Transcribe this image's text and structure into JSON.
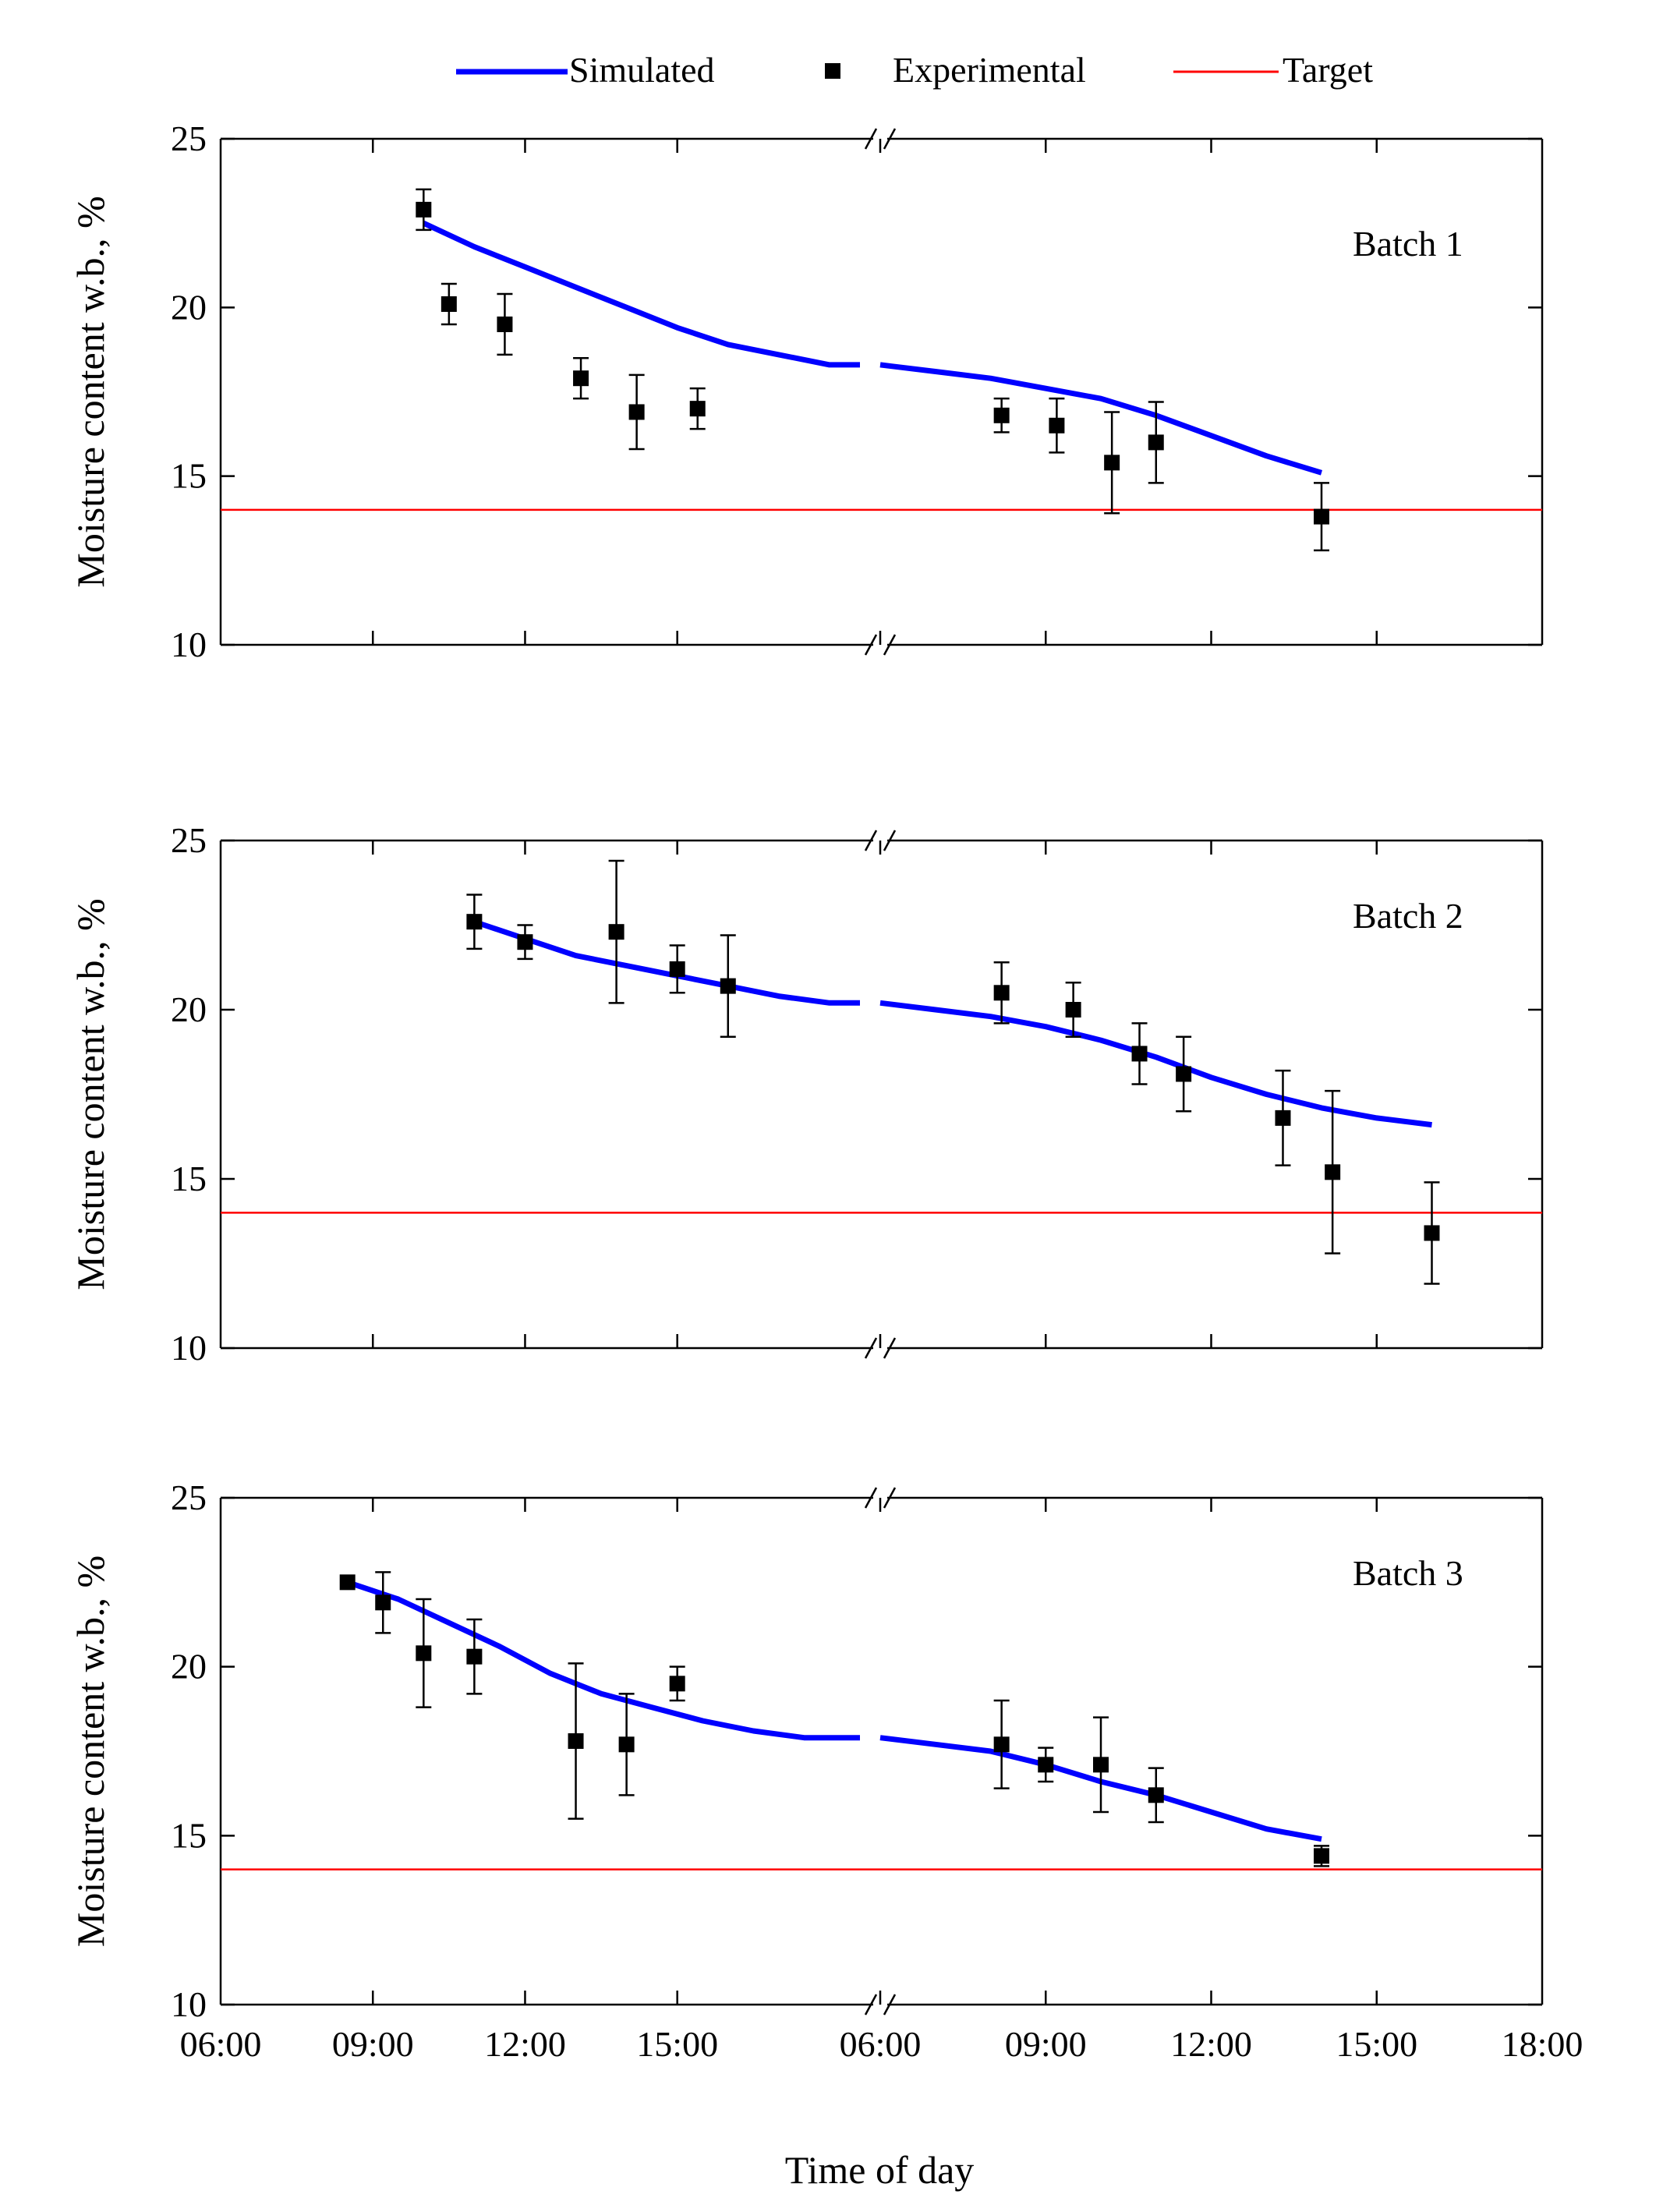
{
  "legend": {
    "simulated": "Simulated",
    "experimental": "Experimental",
    "target": "Target"
  },
  "colors": {
    "simulated": "#0000ff",
    "experimental": "#000000",
    "target": "#ff0000",
    "axis": "#000000"
  },
  "chart_data": {
    "type": "line",
    "xlabel": "Time of day",
    "ylabel": "Moisture content w.b., %",
    "ylim": [
      10,
      25
    ],
    "yticks": [
      10,
      15,
      20,
      25
    ],
    "x_axis_note": "Broken axis: day 1 spans 06:00-19:00 (hours 6-19), day 2 spans 06:00-18:00 (plotted as hours 30-42)",
    "xticks": [
      {
        "hour": 6,
        "label": "06:00"
      },
      {
        "hour": 9,
        "label": "09:00"
      },
      {
        "hour": 12,
        "label": "12:00"
      },
      {
        "hour": 15,
        "label": "15:00"
      },
      {
        "hour": 30,
        "label": "06:00"
      },
      {
        "hour": 33,
        "label": "09:00"
      },
      {
        "hour": 36,
        "label": "12:00"
      },
      {
        "hour": 39,
        "label": "15:00"
      },
      {
        "hour": 42,
        "label": "18:00"
      }
    ],
    "target": 14,
    "panels": [
      {
        "label": "Batch 1",
        "simulated": [
          [
            [
              10.0,
              22.5
            ],
            [
              11.0,
              21.8
            ],
            [
              12.0,
              21.2
            ],
            [
              13.0,
              20.6
            ],
            [
              14.0,
              20.0
            ],
            [
              15.0,
              19.4
            ],
            [
              16.0,
              18.9
            ],
            [
              17.0,
              18.6
            ],
            [
              18.0,
              18.3
            ],
            [
              18.6,
              18.3
            ]
          ],
          [
            [
              30.0,
              18.3
            ],
            [
              31.0,
              18.1
            ],
            [
              32.0,
              17.9
            ],
            [
              33.0,
              17.6
            ],
            [
              34.0,
              17.3
            ],
            [
              35.0,
              16.8
            ],
            [
              36.0,
              16.2
            ],
            [
              37.0,
              15.6
            ],
            [
              38.0,
              15.1
            ]
          ]
        ],
        "experimental": [
          {
            "x": 10.0,
            "y": 22.9,
            "err": 0.6
          },
          {
            "x": 10.5,
            "y": 20.1,
            "err": 0.6
          },
          {
            "x": 11.6,
            "y": 19.5,
            "err": 0.9
          },
          {
            "x": 13.1,
            "y": 17.9,
            "err": 0.6
          },
          {
            "x": 14.2,
            "y": 16.9,
            "err": 1.1
          },
          {
            "x": 15.4,
            "y": 17.0,
            "err": 0.6
          },
          {
            "x": 32.2,
            "y": 16.8,
            "err": 0.5
          },
          {
            "x": 33.2,
            "y": 16.5,
            "err": 0.8
          },
          {
            "x": 34.2,
            "y": 15.4,
            "err": 1.5
          },
          {
            "x": 35.0,
            "y": 16.0,
            "err": 1.2
          },
          {
            "x": 38.0,
            "y": 13.8,
            "err": 1.0
          }
        ]
      },
      {
        "label": "Batch 2",
        "simulated": [
          [
            [
              11.0,
              22.6
            ],
            [
              12.0,
              22.1
            ],
            [
              13.0,
              21.6
            ],
            [
              14.0,
              21.3
            ],
            [
              15.0,
              21.0
            ],
            [
              16.0,
              20.7
            ],
            [
              17.0,
              20.4
            ],
            [
              18.0,
              20.2
            ],
            [
              18.6,
              20.2
            ]
          ],
          [
            [
              30.0,
              20.2
            ],
            [
              31.0,
              20.0
            ],
            [
              32.0,
              19.8
            ],
            [
              33.0,
              19.5
            ],
            [
              34.0,
              19.1
            ],
            [
              35.0,
              18.6
            ],
            [
              36.0,
              18.0
            ],
            [
              37.0,
              17.5
            ],
            [
              38.0,
              17.1
            ],
            [
              39.0,
              16.8
            ],
            [
              40.0,
              16.6
            ]
          ]
        ],
        "experimental": [
          {
            "x": 11.0,
            "y": 22.6,
            "err": 0.8
          },
          {
            "x": 12.0,
            "y": 22.0,
            "err": 0.5
          },
          {
            "x": 13.8,
            "y": 22.3,
            "err": 2.1
          },
          {
            "x": 15.0,
            "y": 21.2,
            "err": 0.7
          },
          {
            "x": 16.0,
            "y": 20.7,
            "err": 1.5
          },
          {
            "x": 32.2,
            "y": 20.5,
            "err": 0.9
          },
          {
            "x": 33.5,
            "y": 20.0,
            "err": 0.8
          },
          {
            "x": 34.7,
            "y": 18.7,
            "err": 0.9
          },
          {
            "x": 35.5,
            "y": 18.1,
            "err": 1.1
          },
          {
            "x": 37.3,
            "y": 16.8,
            "err": 1.4
          },
          {
            "x": 38.2,
            "y": 15.2,
            "err": 2.4
          },
          {
            "x": 40.0,
            "y": 13.4,
            "err": 1.5
          }
        ]
      },
      {
        "label": "Batch 3",
        "simulated": [
          [
            [
              8.5,
              22.5
            ],
            [
              9.5,
              22.0
            ],
            [
              10.5,
              21.3
            ],
            [
              11.5,
              20.6
            ],
            [
              12.5,
              19.8
            ],
            [
              13.5,
              19.2
            ],
            [
              14.5,
              18.8
            ],
            [
              15.5,
              18.4
            ],
            [
              16.5,
              18.1
            ],
            [
              17.5,
              17.9
            ],
            [
              18.6,
              17.9
            ]
          ],
          [
            [
              30.0,
              17.9
            ],
            [
              31.0,
              17.7
            ],
            [
              32.0,
              17.5
            ],
            [
              33.0,
              17.1
            ],
            [
              34.0,
              16.6
            ],
            [
              35.0,
              16.2
            ],
            [
              36.0,
              15.7
            ],
            [
              37.0,
              15.2
            ],
            [
              38.0,
              14.9
            ]
          ]
        ],
        "experimental": [
          {
            "x": 8.5,
            "y": 22.5,
            "err": 0.0
          },
          {
            "x": 9.2,
            "y": 21.9,
            "err": 0.9
          },
          {
            "x": 10.0,
            "y": 20.4,
            "err": 1.6
          },
          {
            "x": 11.0,
            "y": 20.3,
            "err": 1.1
          },
          {
            "x": 13.0,
            "y": 17.8,
            "err": 2.3
          },
          {
            "x": 14.0,
            "y": 17.7,
            "err": 1.5
          },
          {
            "x": 15.0,
            "y": 19.5,
            "err": 0.5
          },
          {
            "x": 32.2,
            "y": 17.7,
            "err": 1.3
          },
          {
            "x": 33.0,
            "y": 17.1,
            "err": 0.5
          },
          {
            "x": 34.0,
            "y": 17.1,
            "err": 1.4
          },
          {
            "x": 35.0,
            "y": 16.2,
            "err": 0.8
          },
          {
            "x": 38.0,
            "y": 14.4,
            "err": 0.3
          }
        ]
      }
    ]
  }
}
